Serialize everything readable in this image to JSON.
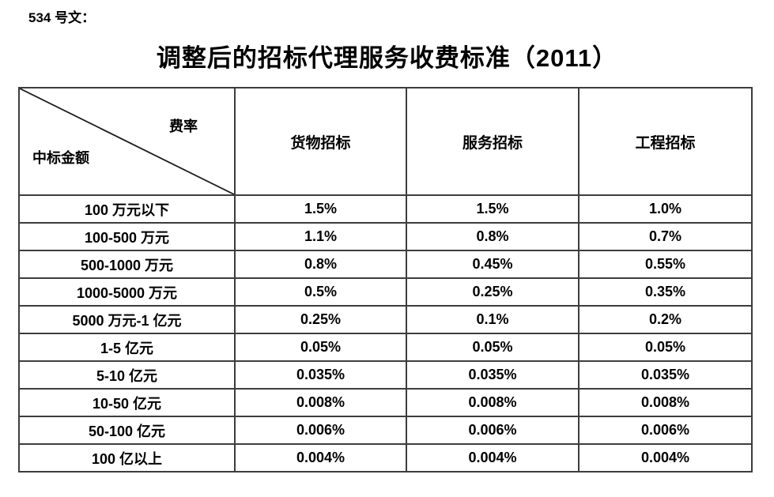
{
  "doc_label": "534 号文：",
  "title": "调整后的招标代理服务收费标准（2011）",
  "table": {
    "corner": {
      "top_right": "费率",
      "bottom_left": "中标金额"
    },
    "columns": [
      "货物招标",
      "服务招标",
      "工程招标"
    ],
    "rows": [
      {
        "label": "100 万元以下",
        "values": [
          "1.5%",
          "1.5%",
          "1.0%"
        ]
      },
      {
        "label": "100-500 万元",
        "values": [
          "1.1%",
          "0.8%",
          "0.7%"
        ]
      },
      {
        "label": "500-1000 万元",
        "values": [
          "0.8%",
          "0.45%",
          "0.55%"
        ]
      },
      {
        "label": "1000-5000 万元",
        "values": [
          "0.5%",
          "0.25%",
          "0.35%"
        ]
      },
      {
        "label": "5000 万元-1 亿元",
        "values": [
          "0.25%",
          "0.1%",
          "0.2%"
        ]
      },
      {
        "label": "1-5 亿元",
        "values": [
          "0.05%",
          "0.05%",
          "0.05%"
        ]
      },
      {
        "label": "5-10 亿元",
        "values": [
          "0.035%",
          "0.035%",
          "0.035%"
        ]
      },
      {
        "label": "10-50 亿元",
        "values": [
          "0.008%",
          "0.008%",
          "0.008%"
        ]
      },
      {
        "label": "50-100 亿元",
        "values": [
          "0.006%",
          "0.006%",
          "0.006%"
        ]
      },
      {
        "label": "100 亿以上",
        "values": [
          "0.004%",
          "0.004%",
          "0.004%"
        ]
      }
    ]
  },
  "colors": {
    "text": "#000000",
    "border": "#3d3d3d",
    "background": "#ffffff"
  }
}
